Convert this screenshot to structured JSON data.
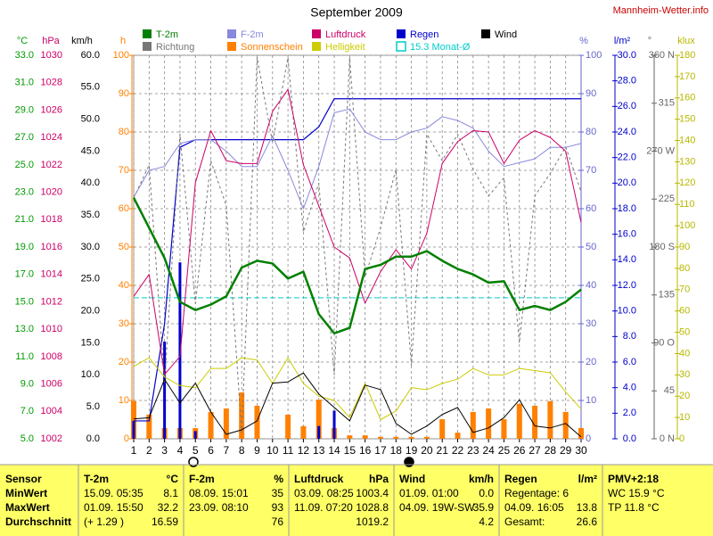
{
  "chart_data": {
    "type": "line",
    "title": "September 2009",
    "source": "Mannheim-Wetter.info",
    "x": [
      1,
      2,
      3,
      4,
      5,
      6,
      7,
      8,
      9,
      10,
      11,
      12,
      13,
      14,
      15,
      16,
      17,
      18,
      19,
      20,
      21,
      22,
      23,
      24,
      25,
      26,
      27,
      28,
      29,
      30
    ],
    "xlim": [
      1,
      30
    ],
    "xticks": [
      1,
      2,
      3,
      4,
      5,
      6,
      7,
      8,
      9,
      10,
      11,
      12,
      13,
      14,
      15,
      16,
      17,
      18,
      19,
      20,
      21,
      22,
      23,
      24,
      25,
      26,
      27,
      28,
      29,
      30
    ],
    "grid": true,
    "grid_axis": "h",
    "axes": {
      "temp": {
        "unit": "°C",
        "side": "left",
        "color": "#009900",
        "lim": [
          5,
          33
        ],
        "ticks": [
          {
            "value": 5,
            "label": "5.0"
          },
          {
            "value": 7,
            "label": "7.0"
          },
          {
            "value": 9,
            "label": "9.0"
          },
          {
            "value": 11,
            "label": "11.0"
          },
          {
            "value": 13,
            "label": "13.0"
          },
          {
            "value": 15,
            "label": "15.0"
          },
          {
            "value": 17,
            "label": "17.0"
          },
          {
            "value": 19,
            "label": "19.0"
          },
          {
            "value": 21,
            "label": "21.0"
          },
          {
            "value": 23,
            "label": "23.0"
          },
          {
            "value": 25,
            "label": "25.0"
          },
          {
            "value": 27,
            "label": "27.0"
          },
          {
            "value": 29,
            "label": "29.0"
          },
          {
            "value": 31,
            "label": "31.0"
          },
          {
            "value": 33,
            "label": "33.0"
          }
        ]
      },
      "hpa": {
        "unit": "hPa",
        "side": "left",
        "color": "#cc0066",
        "lim": [
          1002,
          1030
        ],
        "ticks": [
          1002,
          1004,
          1006,
          1008,
          1010,
          1012,
          1014,
          1016,
          1018,
          1020,
          1022,
          1024,
          1026,
          1028,
          1030
        ]
      },
      "kmh": {
        "unit": "km/h",
        "side": "left",
        "color": "#000000",
        "lim": [
          0,
          60
        ],
        "ticks": [
          {
            "value": 0,
            "label": "0.0"
          },
          {
            "value": 5,
            "label": "5.0"
          },
          {
            "value": 10,
            "label": "10.0"
          },
          {
            "value": 15,
            "label": "15.0"
          },
          {
            "value": 20,
            "label": "20.0"
          },
          {
            "value": 25,
            "label": "25.0"
          },
          {
            "value": 30,
            "label": "30.0"
          },
          {
            "value": 35,
            "label": "35.0"
          },
          {
            "value": 40,
            "label": "40.0"
          },
          {
            "value": 45,
            "label": "45.0"
          },
          {
            "value": 50,
            "label": "50.0"
          },
          {
            "value": 55,
            "label": "55.0"
          },
          {
            "value": 60,
            "label": "60.0"
          }
        ]
      },
      "h": {
        "unit": "h",
        "side": "left",
        "color": "#ff8000",
        "lim": [
          0,
          100
        ],
        "ticks": [
          0,
          10,
          20,
          30,
          40,
          50,
          60,
          70,
          80,
          90,
          100
        ]
      },
      "pct": {
        "unit": "%",
        "side": "right",
        "color": "#6666cc",
        "lim": [
          0,
          100
        ],
        "ticks": [
          0,
          10,
          20,
          30,
          40,
          50,
          60,
          70,
          80,
          90,
          100
        ]
      },
      "rain": {
        "unit": "l/m²",
        "side": "right",
        "color": "#0000cc",
        "lim": [
          0,
          30
        ],
        "ticks": [
          {
            "value": 0,
            "label": "0.0"
          },
          {
            "value": 2,
            "label": "2.0"
          },
          {
            "value": 4,
            "label": "4.0"
          },
          {
            "value": 6,
            "label": "6.0"
          },
          {
            "value": 8,
            "label": "8.0"
          },
          {
            "value": 10,
            "label": "10.0"
          },
          {
            "value": 12,
            "label": "12.0"
          },
          {
            "value": 14,
            "label": "14.0"
          },
          {
            "value": 16,
            "label": "16.0"
          },
          {
            "value": 18,
            "label": "18.0"
          },
          {
            "value": 20,
            "label": "20.0"
          },
          {
            "value": 22,
            "label": "22.0"
          },
          {
            "value": 24,
            "label": "24.0"
          },
          {
            "value": 26,
            "label": "26.0"
          },
          {
            "value": 28,
            "label": "28.0"
          },
          {
            "value": 30,
            "label": "30.0"
          }
        ]
      },
      "deg": {
        "unit": "°",
        "side": "right",
        "color": "#666666",
        "lim": [
          0,
          360
        ],
        "ticks": [
          {
            "value": 0,
            "label": "0 N"
          },
          45,
          {
            "value": 90,
            "label": "90 O"
          },
          135,
          {
            "value": 180,
            "label": "180 S"
          },
          225,
          {
            "value": 270,
            "label": "270 W"
          },
          315,
          {
            "value": 360,
            "label": "360 N"
          }
        ]
      },
      "klux": {
        "unit": "klux",
        "side": "right",
        "color": "#b8b800",
        "lim": [
          0,
          180
        ],
        "ticks": [
          0,
          10,
          20,
          30,
          40,
          50,
          60,
          70,
          80,
          90,
          100,
          110,
          120,
          130,
          140,
          150,
          160,
          170,
          180
        ]
      }
    },
    "series": [
      {
        "name": "T-2m",
        "color": "#008000",
        "axis": "temp",
        "type": "line",
        "width": 2.5,
        "values": [
          22.6,
          20.4,
          18.2,
          15.0,
          14.4,
          14.8,
          15.4,
          17.5,
          18.0,
          17.8,
          16.7,
          17.2,
          14.1,
          12.7,
          13.1,
          17.4,
          17.7,
          18.3,
          18.3,
          18.7,
          18.0,
          17.4,
          17.0,
          16.4,
          16.5,
          14.4,
          14.7,
          14.4,
          15.0,
          15.9
        ]
      },
      {
        "name": "F-2m",
        "color": "#8888dd",
        "axis": "pct",
        "type": "line",
        "width": 1,
        "values": [
          63,
          70,
          71,
          77,
          78,
          78,
          75,
          71,
          71,
          79,
          70,
          60,
          71,
          85,
          86,
          80,
          78,
          78,
          80,
          81,
          84,
          83,
          81,
          75,
          71,
          72,
          73,
          76,
          76,
          77
        ]
      },
      {
        "name": "Luftdruck",
        "color": "#cc0066",
        "axis": "hpa",
        "type": "line",
        "width": 1,
        "values": [
          1012.4,
          1014,
          1006.7,
          1008,
          1020.7,
          1024.5,
          1022.3,
          1022.1,
          1022.1,
          1025.9,
          1027.5,
          1022,
          1019,
          1016,
          1015.2,
          1011.9,
          1014.2,
          1015.8,
          1014.4,
          1017,
          1022.1,
          1023.7,
          1024.5,
          1024.4,
          1022.1,
          1023.8,
          1024.5,
          1024,
          1023,
          1017.8
        ]
      },
      {
        "name": "Regen",
        "color": "#0000cc",
        "axis": "rain",
        "type": "bar",
        "cumulative": true,
        "width": 3,
        "values": [
          1.4,
          0,
          7.6,
          13.8,
          0.6,
          0,
          0,
          0,
          0,
          0,
          0,
          0,
          1.0,
          2.2,
          0,
          0,
          0,
          0,
          0,
          0,
          0,
          0,
          0,
          0,
          0,
          0,
          0,
          0,
          0,
          0
        ]
      },
      {
        "name": "Wind",
        "color": "#000000",
        "axis": "kmh",
        "type": "line",
        "width": 1,
        "values": [
          3.1,
          3.3,
          9.3,
          5.6,
          8.7,
          4.2,
          0.7,
          1.4,
          2.8,
          8.7,
          8.9,
          10.3,
          7,
          4.9,
          2.8,
          8.4,
          7.7,
          2.4,
          0.7,
          2,
          3.8,
          4.9,
          1,
          1.7,
          3.3,
          6.1,
          2,
          1.7,
          2.4,
          0.3
        ]
      },
      {
        "name": "Richtung",
        "color": "#777777",
        "axis": "deg",
        "type": "line",
        "dashed": true,
        "width": 1,
        "values": [
          226,
          257,
          52,
          286,
          127,
          261,
          219,
          6,
          358,
          278,
          358,
          194,
          240,
          60,
          358,
          152,
          198,
          253,
          69,
          286,
          261,
          286,
          253,
          228,
          245,
          90,
          228,
          249,
          274,
          232
        ]
      },
      {
        "name": "Sonnenschein",
        "color": "#ff8000",
        "axis": "h",
        "type": "bar",
        "width": 6,
        "values": [
          9.8,
          6.3,
          2.8,
          2.8,
          2.8,
          7,
          7.9,
          12.1,
          8.6,
          0,
          6.3,
          3.3,
          10.2,
          2.8,
          0.9,
          0.9,
          0.5,
          0.5,
          0.5,
          0.5,
          5.1,
          1.6,
          7,
          7.9,
          5.1,
          9.1,
          8.6,
          9.8,
          7,
          2.8
        ]
      },
      {
        "name": "Helligkeit",
        "color": "#cccc00",
        "axis": "klux",
        "type": "line",
        "width": 1,
        "values": [
          34,
          38,
          29,
          25,
          24,
          33,
          33,
          38,
          37,
          26,
          38,
          26,
          20,
          18,
          10,
          26,
          9,
          13,
          24,
          23,
          26,
          28,
          33,
          30,
          30,
          33,
          32,
          31,
          22,
          14
        ]
      }
    ],
    "reference": {
      "label": "15.3 Monat-Ø",
      "value": 15.3,
      "axis": "temp",
      "color": "#00cccc"
    }
  },
  "table": {
    "header": [
      {
        "left": "Sensor"
      },
      {
        "left": "T-2m",
        "right": "°C"
      },
      {
        "left": "F-2m",
        "right": "%"
      },
      {
        "left": "Luftdruck",
        "right": "hPa"
      },
      {
        "left": "Wind",
        "right": "km/h"
      },
      {
        "left": "Regen",
        "right": "l/m²"
      },
      {
        "left": "PMV+2:18"
      }
    ],
    "rows": [
      [
        {
          "left": "MinWert"
        },
        {
          "left": "15.09.  05:35",
          "right": "8.1"
        },
        {
          "left": "08.09.  15:01",
          "right": "35"
        },
        {
          "left": "03.09.  08:25",
          "right": "1003.4"
        },
        {
          "left": "01.09.  01:00",
          "right": "0.0"
        },
        {
          "left": "Regentage: 6"
        },
        {
          "left": "WC 15.9 °C"
        }
      ],
      [
        {
          "left": "MaxWert"
        },
        {
          "left": "01.09.  15:50",
          "right": "32.2"
        },
        {
          "left": "23.09.  08:10",
          "right": "93"
        },
        {
          "left": "11.09.  07:20",
          "right": "1028.8"
        },
        {
          "left": "04.09.  19W-SW",
          "right": "35.9"
        },
        {
          "left": "04.09.  16:05",
          "right": "13.8"
        },
        {
          "left": "TP 11.8 °C"
        }
      ],
      [
        {
          "left": "Durchschnitt"
        },
        {
          "left": "(+ 1.29 )",
          "right": "16.59"
        },
        {
          "right": "76"
        },
        {
          "right": "1019.2"
        },
        {
          "right": "4.2"
        },
        {
          "left": "Gesamt:",
          "right": "26.6"
        }
      ]
    ]
  }
}
